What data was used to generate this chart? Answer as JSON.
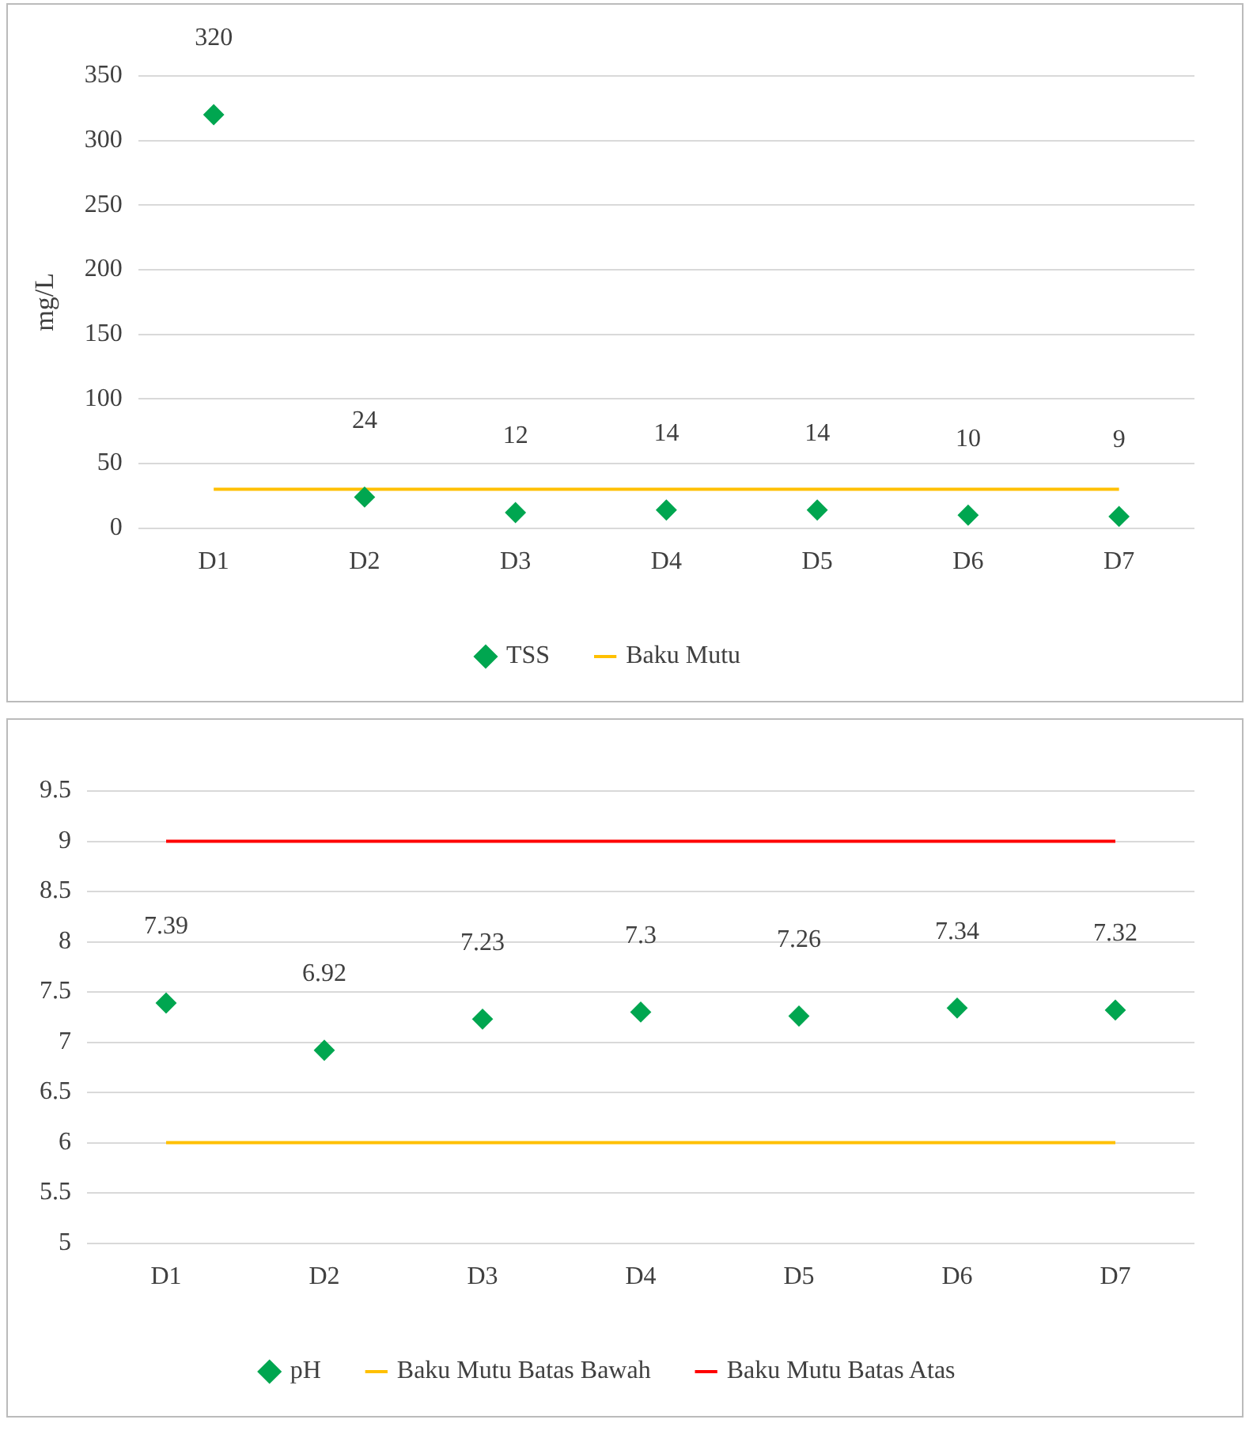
{
  "chart_data": [
    {
      "type": "scatter",
      "ylabel": "mg/L",
      "categories": [
        "D1",
        "D2",
        "D3",
        "D4",
        "D5",
        "D6",
        "D7"
      ],
      "ylim": [
        0,
        350
      ],
      "yticks": [
        0,
        50,
        100,
        150,
        200,
        250,
        300,
        350
      ],
      "grid": "y",
      "legend": "bottom",
      "series": [
        {
          "name": "TSS",
          "marker": "diamond",
          "color": "#00a650",
          "values": [
            320,
            24,
            12,
            14,
            14,
            10,
            9
          ],
          "value_labels": [
            "320",
            "24",
            "12",
            "14",
            "14",
            "10",
            "9"
          ]
        },
        {
          "name": "Baku Mutu",
          "type": "line",
          "color": "#ffc000",
          "values": [
            30,
            30,
            30,
            30,
            30,
            30,
            30
          ]
        }
      ]
    },
    {
      "type": "scatter",
      "categories": [
        "D1",
        "D2",
        "D3",
        "D4",
        "D5",
        "D6",
        "D7"
      ],
      "ylim": [
        5,
        9.5
      ],
      "yticks": [
        5,
        5.5,
        6,
        6.5,
        7,
        7.5,
        8,
        8.5,
        9,
        9.5
      ],
      "grid": "y",
      "legend": "bottom",
      "series": [
        {
          "name": "pH",
          "marker": "diamond",
          "color": "#00a650",
          "values": [
            7.39,
            6.92,
            7.23,
            7.3,
            7.26,
            7.34,
            7.32
          ],
          "value_labels": [
            "7.39",
            "6.92",
            "7.23",
            "7.3",
            "7.26",
            "7.34",
            "7.32"
          ]
        },
        {
          "name": "Baku Mutu Batas Bawah",
          "type": "line",
          "color": "#ffc000",
          "values": [
            6,
            6,
            6,
            6,
            6,
            6,
            6
          ]
        },
        {
          "name": "Baku Mutu Batas Atas",
          "type": "line",
          "color": "#ff0000",
          "values": [
            9,
            9,
            9,
            9,
            9,
            9,
            9
          ]
        }
      ]
    }
  ]
}
